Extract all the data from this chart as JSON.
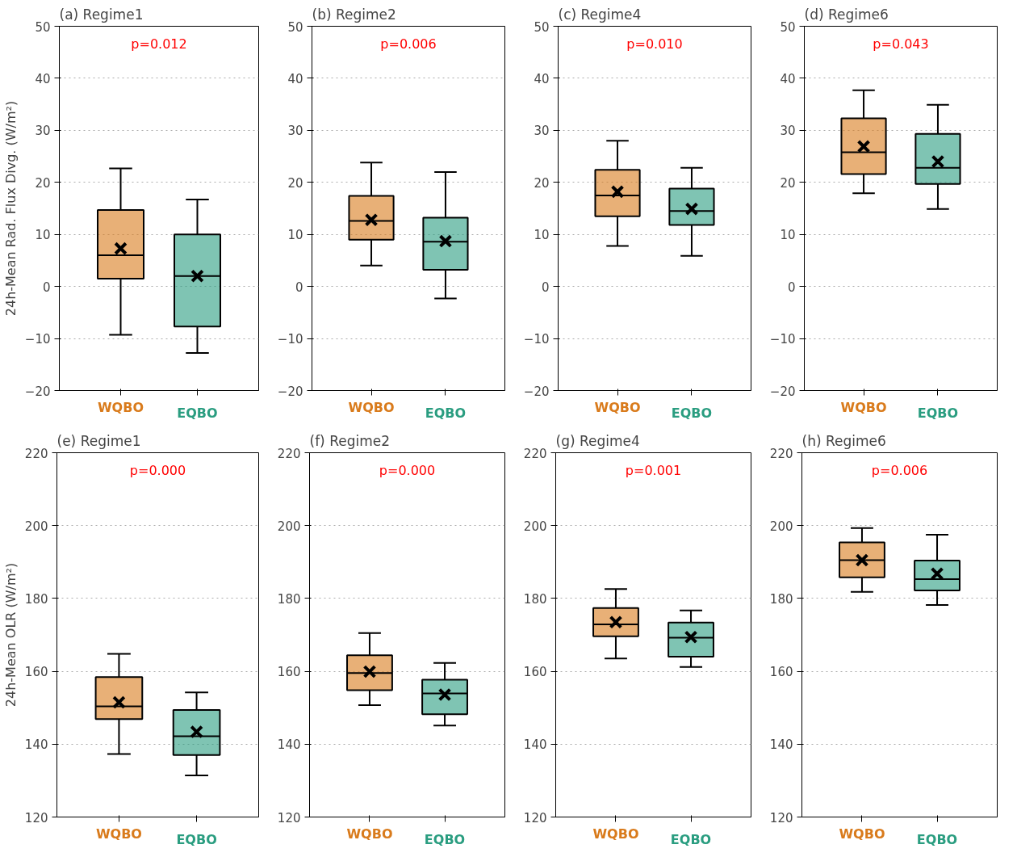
{
  "chart_data": [
    {
      "type": "box",
      "title": "(a) Regime1",
      "ylabel": "24h-Mean Rad. Flux Divg. (W/m²)",
      "categories": [
        "WQBO",
        "EQBO"
      ],
      "colors": [
        "#d97b1c",
        "#2a9d80"
      ],
      "ylim": [
        -20,
        50
      ],
      "yticks": [
        -20,
        -10,
        0,
        10,
        20,
        30,
        40,
        50
      ],
      "grid": "y",
      "annotations": [
        "p=0.012"
      ],
      "boxes": [
        {
          "low": -9.3,
          "q1": 1.5,
          "median": 6,
          "q3": 14.7,
          "high": 22.7,
          "mean": 7.3
        },
        {
          "low": -12.8,
          "q1": -7.7,
          "median": 2,
          "q3": 10,
          "high": 16.7,
          "mean": 2
        }
      ]
    },
    {
      "type": "box",
      "title": "(b) Regime2",
      "categories": [
        "WQBO",
        "EQBO"
      ],
      "colors": [
        "#d97b1c",
        "#2a9d80"
      ],
      "ylim": [
        -20,
        50
      ],
      "yticks": [
        -20,
        -10,
        0,
        10,
        20,
        30,
        40,
        50
      ],
      "grid": "y",
      "annotations": [
        "p=0.006"
      ],
      "boxes": [
        {
          "low": 4,
          "q1": 9,
          "median": 12.6,
          "q3": 17.4,
          "high": 23.8,
          "mean": 12.8
        },
        {
          "low": -2.3,
          "q1": 3.2,
          "median": 8.6,
          "q3": 13.2,
          "high": 22,
          "mean": 8.7
        }
      ]
    },
    {
      "type": "box",
      "title": "(c) Regime4",
      "categories": [
        "WQBO",
        "EQBO"
      ],
      "colors": [
        "#d97b1c",
        "#2a9d80"
      ],
      "ylim": [
        -20,
        50
      ],
      "yticks": [
        -20,
        -10,
        0,
        10,
        20,
        30,
        40,
        50
      ],
      "grid": "y",
      "annotations": [
        "p=0.010"
      ],
      "boxes": [
        {
          "low": 7.8,
          "q1": 13.5,
          "median": 17.5,
          "q3": 22.4,
          "high": 28,
          "mean": 18.2
        },
        {
          "low": 5.9,
          "q1": 11.8,
          "median": 14.5,
          "q3": 18.8,
          "high": 22.8,
          "mean": 14.9
        }
      ]
    },
    {
      "type": "box",
      "title": "(d) Regime6",
      "categories": [
        "WQBO",
        "EQBO"
      ],
      "colors": [
        "#d97b1c",
        "#2a9d80"
      ],
      "ylim": [
        -20,
        50
      ],
      "yticks": [
        -20,
        -10,
        0,
        10,
        20,
        30,
        40,
        50
      ],
      "grid": "y",
      "annotations": [
        "p=0.043"
      ],
      "boxes": [
        {
          "low": 17.9,
          "q1": 21.6,
          "median": 25.8,
          "q3": 32.3,
          "high": 37.7,
          "mean": 26.9
        },
        {
          "low": 14.9,
          "q1": 19.7,
          "median": 22.8,
          "q3": 29.3,
          "high": 34.9,
          "mean": 24
        }
      ]
    },
    {
      "type": "box",
      "title": "(e) Regime1",
      "ylabel": "24h-Mean OLR (W/m²)",
      "categories": [
        "WQBO",
        "EQBO"
      ],
      "colors": [
        "#d97b1c",
        "#2a9d80"
      ],
      "ylim": [
        120,
        220
      ],
      "yticks": [
        120,
        140,
        160,
        180,
        200,
        220
      ],
      "grid": "y",
      "annotations": [
        "p=0.000"
      ],
      "boxes": [
        {
          "low": 137.3,
          "q1": 146.9,
          "median": 150.4,
          "q3": 158.4,
          "high": 164.8,
          "mean": 151.5
        },
        {
          "low": 131.4,
          "q1": 137,
          "median": 142.2,
          "q3": 149.4,
          "high": 154.2,
          "mean": 143.4
        }
      ]
    },
    {
      "type": "box",
      "title": "(f) Regime2",
      "categories": [
        "WQBO",
        "EQBO"
      ],
      "colors": [
        "#d97b1c",
        "#2a9d80"
      ],
      "ylim": [
        120,
        220
      ],
      "yticks": [
        120,
        140,
        160,
        180,
        200,
        220
      ],
      "grid": "y",
      "annotations": [
        "p=0.000"
      ],
      "boxes": [
        {
          "low": 150.7,
          "q1": 154.8,
          "median": 159.5,
          "q3": 164.4,
          "high": 170.5,
          "mean": 159.9
        },
        {
          "low": 145.1,
          "q1": 148.2,
          "median": 153.9,
          "q3": 157.7,
          "high": 162.3,
          "mean": 153.6
        }
      ]
    },
    {
      "type": "box",
      "title": "(g) Regime4",
      "categories": [
        "WQBO",
        "EQBO"
      ],
      "colors": [
        "#d97b1c",
        "#2a9d80"
      ],
      "ylim": [
        120,
        220
      ],
      "yticks": [
        120,
        140,
        160,
        180,
        200,
        220
      ],
      "grid": "y",
      "annotations": [
        "p=0.001"
      ],
      "boxes": [
        {
          "low": 163.5,
          "q1": 169.6,
          "median": 172.9,
          "q3": 177.4,
          "high": 182.6,
          "mean": 173.5
        },
        {
          "low": 161.2,
          "q1": 164,
          "median": 169.2,
          "q3": 173.4,
          "high": 176.7,
          "mean": 169.4
        }
      ]
    },
    {
      "type": "box",
      "title": "(h) Regime6",
      "categories": [
        "WQBO",
        "EQBO"
      ],
      "colors": [
        "#d97b1c",
        "#2a9d80"
      ],
      "ylim": [
        120,
        220
      ],
      "yticks": [
        120,
        140,
        160,
        180,
        200,
        220
      ],
      "grid": "y",
      "annotations": [
        "p=0.006"
      ],
      "boxes": [
        {
          "low": 181.8,
          "q1": 185.8,
          "median": 190.5,
          "q3": 195.4,
          "high": 199.3,
          "mean": 190.5
        },
        {
          "low": 178.2,
          "q1": 182.2,
          "median": 185.3,
          "q3": 190.4,
          "high": 197.5,
          "mean": 186.8
        }
      ]
    }
  ]
}
